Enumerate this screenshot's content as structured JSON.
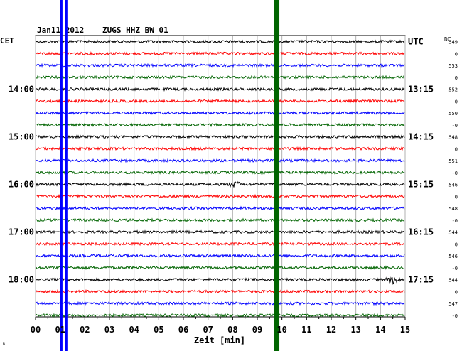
{
  "header": {
    "date": "Jan11 2012",
    "station": "ZUGS HHZ BW 01",
    "left_zone": "CET",
    "right_zone": "UTC",
    "dc_label": "DC"
  },
  "chart_data": {
    "type": "line",
    "title": "Jan11 2012  ZUGS HHZ BW 01",
    "xlabel": "Zeit [min]",
    "x_ticks": [
      "00",
      "01",
      "02",
      "03",
      "04",
      "05",
      "06",
      "07",
      "08",
      "09",
      "10",
      "11",
      "12",
      "13",
      "14",
      "15"
    ],
    "xlim": [
      0,
      15
    ],
    "grid": true,
    "trace_colors": [
      "#000000",
      "#ff0000",
      "#0000ff",
      "#006400"
    ],
    "left_time_labels": [
      {
        "row": 4,
        "label": "14:00"
      },
      {
        "row": 8,
        "label": "15:00"
      },
      {
        "row": 12,
        "label": "16:00"
      },
      {
        "row": 16,
        "label": "17:00"
      },
      {
        "row": 20,
        "label": "18:00"
      }
    ],
    "right_time_labels": [
      {
        "row": 0,
        "label": "UTC"
      },
      {
        "row": 4,
        "label": "13:15"
      },
      {
        "row": 8,
        "label": "14:15"
      },
      {
        "row": 12,
        "label": "15:15"
      },
      {
        "row": 16,
        "label": "16:15"
      },
      {
        "row": 20,
        "label": "17:15"
      }
    ],
    "dc_values": [
      "549",
      "0",
      "553",
      "0",
      "552",
      "0",
      "550",
      "-0",
      "548",
      "0",
      "551",
      "-0",
      "546",
      "0",
      "548",
      "-0",
      "544",
      "0",
      "546",
      "-0",
      "544",
      "0",
      "547",
      "-0"
    ],
    "vertical_markers": [
      {
        "minute": 1.05,
        "color": "#0000ff",
        "width": 3
      },
      {
        "minute": 1.25,
        "color": "#0000ff",
        "width": 3
      },
      {
        "minute": 9.78,
        "color": "#006400",
        "width": 8
      }
    ],
    "events": [
      {
        "row": 12,
        "minute": 8.1,
        "amplitude": 3.5
      },
      {
        "row": 20,
        "minute": 14.5,
        "amplitude": 4.5
      }
    ],
    "corner_mark": "ᴮ"
  }
}
